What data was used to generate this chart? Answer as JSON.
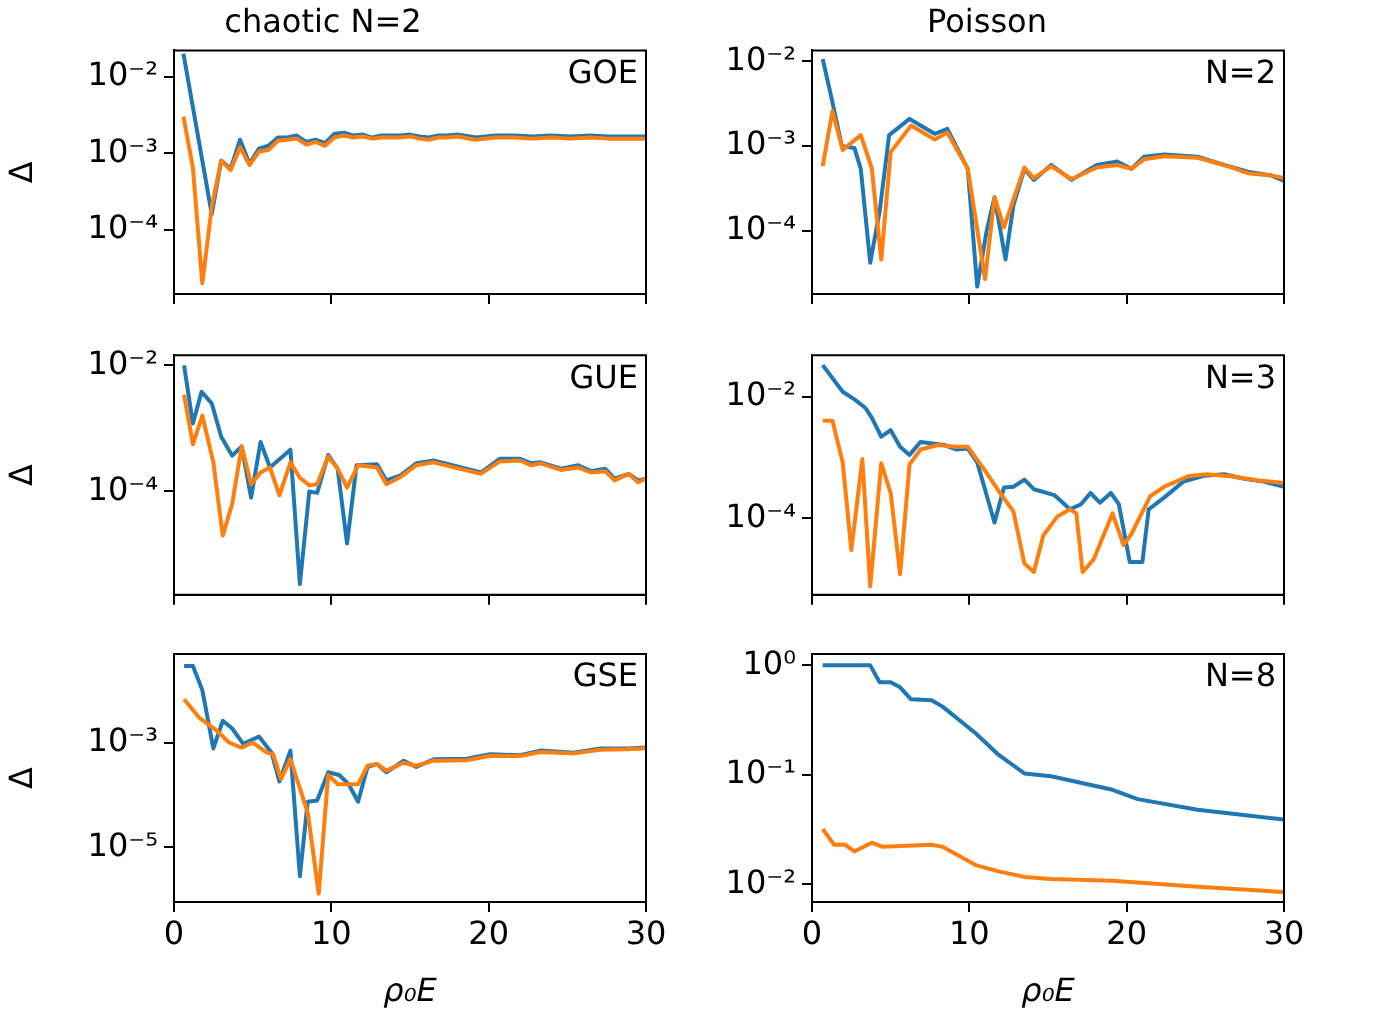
{
  "chart_data": [
    {
      "type": "line",
      "title": "chaotic N=2",
      "ylabel": "Δ",
      "annotations": [
        "GOE"
      ],
      "log": "y",
      "grid": false,
      "legend": false,
      "marker": "none",
      "line_style": "solid",
      "tick_labels": "y",
      "xlim": [
        0,
        30
      ],
      "xticks": [
        0,
        10,
        20,
        30
      ],
      "ylim": [
        1.45e-05,
        0.022
      ],
      "yticks": [
        {
          "value": 0.0001,
          "label": "10⁻⁴"
        },
        {
          "value": 0.001,
          "label": "10⁻³"
        },
        {
          "value": 0.01,
          "label": "10⁻²"
        }
      ],
      "x": [
        0.6,
        1.2,
        1.8,
        2.4,
        3.0,
        3.6,
        4.2,
        4.8,
        5.4,
        6.0,
        6.6,
        7.2,
        7.8,
        8.4,
        9.0,
        9.6,
        10.2,
        10.8,
        11.4,
        12.0,
        12.6,
        13.2,
        13.8,
        14.4,
        15.0,
        15.6,
        16.2,
        16.8,
        17.4,
        18.0,
        19.2,
        20.4,
        21.6,
        22.8,
        24.0,
        25.2,
        26.4,
        27.6,
        28.8,
        30.0
      ],
      "series": [
        {
          "color": "#1f77b4",
          "values": [
            0.02,
            0.004,
            0.0008,
            0.00016,
            0.0008,
            0.00063,
            0.0015,
            0.00073,
            0.00115,
            0.00125,
            0.0016,
            0.0016,
            0.0017,
            0.0014,
            0.0015,
            0.00135,
            0.0018,
            0.00185,
            0.0017,
            0.00175,
            0.0016,
            0.0017,
            0.0017,
            0.0017,
            0.00175,
            0.00165,
            0.0016,
            0.0017,
            0.0017,
            0.00175,
            0.0016,
            0.0017,
            0.0017,
            0.00165,
            0.0017,
            0.00165,
            0.0017,
            0.00165,
            0.00165,
            0.00165
          ]
        },
        {
          "color": "#ff7f0e",
          "values": [
            0.003,
            0.00065,
            2e-05,
            0.0002,
            0.0008,
            0.0006,
            0.0012,
            0.0007,
            0.00105,
            0.0011,
            0.00145,
            0.0015,
            0.00155,
            0.0013,
            0.0014,
            0.00125,
            0.0016,
            0.0017,
            0.0016,
            0.00165,
            0.00155,
            0.0016,
            0.0016,
            0.0016,
            0.00165,
            0.00155,
            0.0015,
            0.0016,
            0.0016,
            0.00165,
            0.0015,
            0.0016,
            0.0016,
            0.00155,
            0.0016,
            0.00155,
            0.0016,
            0.00155,
            0.00155,
            0.00155
          ]
        }
      ]
    },
    {
      "type": "line",
      "title": "Poisson",
      "annotations": [
        "N=2"
      ],
      "log": "y",
      "grid": false,
      "legend": false,
      "marker": "none",
      "line_style": "solid",
      "tick_labels": "y",
      "xlim": [
        0,
        30
      ],
      "xticks": [
        0,
        10,
        20,
        30
      ],
      "ylim": [
        1.8e-05,
        0.0135
      ],
      "yticks": [
        {
          "value": 0.0001,
          "label": "10⁻⁴"
        },
        {
          "value": 0.001,
          "label": "10⁻³"
        },
        {
          "value": 0.01,
          "label": "10⁻²"
        }
      ],
      "series": [
        {
          "color": "#1f77b4",
          "x": [
            0.68,
            1.2,
            1.9,
            2.7,
            3.1,
            3.7,
            4.3,
            4.9,
            6.2,
            6.9,
            7.8,
            8.6,
            9.9,
            10.5,
            11.1,
            11.6,
            12.3,
            12.8,
            13.5,
            14.1,
            15.2,
            16.5,
            18.1,
            19.4,
            20.3,
            21.1,
            22.4,
            24.5,
            26.2,
            27.7,
            29.2,
            30
          ],
          "values": [
            0.0107,
            0.004,
            0.001,
            0.00095,
            0.00054,
            4.2e-05,
            0.00017,
            0.00135,
            0.0021,
            0.00175,
            0.0014,
            0.0016,
            0.00054,
            2.2e-05,
            0.0001,
            0.00025,
            4.6e-05,
            0.0002,
            0.00054,
            0.0004,
            0.0006,
            0.0004,
            0.0006,
            0.00066,
            0.00054,
            0.00075,
            0.0008,
            0.00075,
            0.0006,
            0.0005,
            0.00045,
            0.00039
          ]
        },
        {
          "color": "#ff7f0e",
          "x": [
            0.68,
            1.3,
            1.95,
            3.1,
            3.8,
            4.4,
            5.0,
            6.3,
            7.8,
            8.6,
            9.9,
            11.0,
            11.6,
            12.2,
            13.5,
            14.1,
            15.2,
            16.5,
            18.1,
            19.4,
            20.3,
            21.1,
            22.4,
            24.5,
            26.2,
            27.7,
            29.2,
            30
          ],
          "values": [
            0.00058,
            0.0026,
            0.0009,
            0.00135,
            0.00055,
            4.6e-05,
            0.00085,
            0.00175,
            0.0012,
            0.00145,
            0.00054,
            2.7e-05,
            0.00025,
            0.00011,
            0.00056,
            0.00042,
            0.00058,
            0.00041,
            0.00056,
            0.0006,
            0.00054,
            0.0007,
            0.00076,
            0.00073,
            0.0006,
            0.00048,
            0.00045,
            0.00042
          ]
        }
      ]
    },
    {
      "type": "line",
      "ylabel": "Δ",
      "annotations": [
        "GUE"
      ],
      "log": "y",
      "grid": false,
      "legend": false,
      "marker": "none",
      "line_style": "solid",
      "tick_labels": "y",
      "xlim": [
        0,
        30
      ],
      "xticks": [
        0,
        10,
        20,
        30
      ],
      "ylim": [
        2.3e-06,
        0.0145
      ],
      "yticks": [
        {
          "value": 0.0001,
          "label": "10⁻⁴"
        },
        {
          "value": 0.01,
          "label": "10⁻²"
        }
      ],
      "series": [
        {
          "color": "#1f77b4",
          "x": [
            0.64,
            1.2,
            1.75,
            2.4,
            3.0,
            3.7,
            4.3,
            4.9,
            5.5,
            6.1,
            7.4,
            8.0,
            8.6,
            9.1,
            9.8,
            10.4,
            11.0,
            11.6,
            12.9,
            13.5,
            14.4,
            15.4,
            16.5,
            19.5,
            20.7,
            22.0,
            22.7,
            23.3,
            24.6,
            25.7,
            26.5,
            27.4,
            28.0,
            28.9,
            29.5,
            30
          ],
          "values": [
            0.01,
            0.0012,
            0.0038,
            0.0025,
            0.00074,
            0.00037,
            0.00052,
            8e-05,
            0.00061,
            0.00024,
            0.00046,
            3.4e-06,
            0.0001,
            9.5e-05,
            0.00038,
            0.00023,
            1.5e-05,
            0.00026,
            0.00027,
            0.00015,
            0.00018,
            0.00028,
            0.00031,
            0.0002,
            0.00033,
            0.00033,
            0.00028,
            0.00029,
            0.00023,
            0.00026,
            0.00021,
            0.00023,
            0.00016,
            0.00019,
            0.00015,
            0.00016
          ]
        },
        {
          "color": "#ff7f0e",
          "x": [
            0.64,
            1.2,
            1.8,
            2.5,
            3.1,
            3.7,
            4.3,
            4.9,
            5.5,
            6.1,
            6.7,
            7.4,
            8.0,
            8.6,
            9.1,
            9.8,
            10.4,
            11.0,
            11.7,
            12.9,
            13.5,
            14.4,
            15.4,
            16.5,
            19.5,
            20.7,
            22.0,
            22.7,
            23.3,
            24.6,
            25.7,
            26.5,
            27.4,
            28.0,
            28.9,
            29.5,
            30
          ],
          "values": [
            0.0034,
            0.00056,
            0.0016,
            0.00029,
            2e-05,
            6.4e-05,
            0.00052,
            0.00013,
            0.0002,
            0.00024,
            8.7e-05,
            0.00029,
            0.000165,
            0.000125,
            0.00013,
            0.00036,
            0.00023,
            0.000115,
            0.00026,
            0.00024,
            0.00013,
            0.00017,
            0.00026,
            0.00029,
            0.00019,
            0.0003,
            0.00031,
            0.00026,
            0.00028,
            0.00022,
            0.00024,
            0.0002,
            0.00021,
            0.00015,
            0.00019,
            0.00014,
            0.00016
          ]
        }
      ]
    },
    {
      "type": "line",
      "annotations": [
        "N=3"
      ],
      "log": "y",
      "grid": false,
      "legend": false,
      "marker": "none",
      "line_style": "solid",
      "tick_labels": "y",
      "xlim": [
        0,
        30
      ],
      "xticks": [
        0,
        10,
        20,
        30
      ],
      "ylim": [
        5.5e-06,
        0.048
      ],
      "yticks": [
        {
          "value": 0.0001,
          "label": "10⁻⁴"
        },
        {
          "value": 0.01,
          "label": "10⁻²"
        }
      ],
      "series": [
        {
          "color": "#1f77b4",
          "x": [
            0.68,
            1.95,
            2.7,
            3.4,
            3.8,
            4.4,
            5.0,
            5.6,
            6.2,
            6.9,
            8.4,
            9.2,
            9.9,
            10.5,
            11.6,
            12.2,
            12.8,
            13.5,
            14.1,
            15.4,
            16.4,
            17.1,
            17.7,
            18.3,
            19.0,
            19.5,
            20.2,
            21.0,
            21.4,
            22.4,
            23.6,
            24.9,
            26.2,
            27.4,
            28.7,
            30
          ],
          "values": [
            0.033,
            0.012,
            0.009,
            0.0065,
            0.0045,
            0.0022,
            0.0028,
            0.0015,
            0.0011,
            0.0018,
            0.0016,
            0.00135,
            0.0014,
            0.00083,
            8.5e-05,
            0.00032,
            0.00033,
            0.00043,
            0.0003,
            0.00024,
            0.00014,
            0.00017,
            0.00026,
            0.00018,
            0.00026,
            0.00017,
            1.9e-05,
            1.9e-05,
            0.00014,
            0.00022,
            0.0004,
            0.0005,
            0.00053,
            0.00045,
            0.0004,
            0.00033
          ]
        },
        {
          "color": "#ff7f0e",
          "x": [
            0.68,
            1.3,
            1.95,
            2.5,
            3.2,
            3.7,
            4.4,
            5.0,
            5.6,
            6.2,
            6.9,
            8.0,
            9.1,
            9.9,
            10.9,
            12.0,
            12.8,
            13.5,
            14.1,
            14.7,
            15.6,
            16.4,
            16.8,
            17.2,
            17.9,
            19.1,
            19.8,
            20.3,
            21.5,
            22.4,
            23.9,
            25.1,
            26.6,
            28.3,
            30
          ],
          "values": [
            0.004,
            0.004,
            0.00083,
            3e-05,
            0.00094,
            7.6e-06,
            0.0008,
            0.00026,
            1.2e-05,
            0.00077,
            0.00135,
            0.0016,
            0.0015,
            0.0015,
            0.00066,
            0.00025,
            0.00013,
            1.8e-05,
            1.3e-05,
            5.2e-05,
            0.000107,
            0.00014,
            0.00012,
            1.3e-05,
            2.1e-05,
            0.00012,
            3.6e-05,
            5.5e-05,
            0.00023,
            0.00033,
            0.00049,
            0.00053,
            0.00049,
            0.00042,
            0.00038
          ]
        }
      ]
    },
    {
      "type": "line",
      "xlabel": "ρ₀E",
      "ylabel": "Δ",
      "annotations": [
        "GSE"
      ],
      "log": "y",
      "grid": false,
      "legend": false,
      "marker": "none",
      "line_style": "solid",
      "xlim": [
        0,
        30
      ],
      "xticks": [
        0,
        10,
        20,
        30
      ],
      "ylim": [
        9e-07,
        0.049
      ],
      "yticks": [
        {
          "value": 1e-05,
          "label": "10⁻⁵"
        },
        {
          "value": 0.001,
          "label": "10⁻³"
        }
      ],
      "series": [
        {
          "color": "#1f77b4",
          "x": [
            0.64,
            1.2,
            1.8,
            2.5,
            3.1,
            3.7,
            4.4,
            5.4,
            6.2,
            6.7,
            7.4,
            8.0,
            8.5,
            9.1,
            9.8,
            10.5,
            11.1,
            11.7,
            12.3,
            12.9,
            13.5,
            14.6,
            15.4,
            16.5,
            18.6,
            20.1,
            22.0,
            23.3,
            25.4,
            27.1,
            28.8,
            30
          ],
          "values": [
            0.029,
            0.029,
            0.01,
            0.00077,
            0.0026,
            0.00185,
            0.00094,
            0.0013,
            0.00064,
            0.00018,
            0.0007,
            2.8e-06,
            7.4e-05,
            7.8e-05,
            0.00027,
            0.00024,
            0.00016,
            7.4e-05,
            0.00034,
            0.00039,
            0.00027,
            0.00045,
            0.00034,
            0.00048,
            0.00049,
            0.0006,
            0.00057,
            0.0007,
            0.00064,
            0.00077,
            0.00077,
            0.0008
          ]
        },
        {
          "color": "#ff7f0e",
          "x": [
            0.64,
            1.6,
            2.7,
            3.5,
            4.3,
            5.0,
            5.9,
            6.3,
            6.8,
            7.4,
            8.5,
            9.2,
            9.8,
            10.4,
            11.7,
            12.3,
            12.9,
            13.5,
            14.6,
            15.4,
            16.5,
            18.6,
            20.1,
            22.0,
            23.3,
            25.4,
            27.1,
            28.8,
            30
          ],
          "values": [
            0.0067,
            0.003,
            0.0017,
            0.001,
            0.0008,
            0.001,
            0.00064,
            0.0006,
            0.0002,
            0.00048,
            4.6e-05,
            1.3e-06,
            0.00024,
            0.00016,
            0.00016,
            0.00036,
            0.00039,
            0.00029,
            0.00041,
            0.00036,
            0.00045,
            0.00046,
            0.00056,
            0.00055,
            0.00066,
            0.00062,
            0.00073,
            0.00074,
            0.00078
          ]
        }
      ]
    },
    {
      "type": "line",
      "xlabel": "ρ₀E",
      "annotations": [
        "N=8"
      ],
      "log": "y",
      "grid": false,
      "legend": false,
      "marker": "none",
      "line_style": "solid",
      "xlim": [
        0,
        30
      ],
      "xticks": [
        0,
        10,
        20,
        30
      ],
      "ylim": [
        0.0069,
        1.27
      ],
      "yticks": [
        {
          "value": 0.01,
          "label": "10⁻²"
        },
        {
          "value": 0.1,
          "label": "10⁻¹"
        },
        {
          "value": 1,
          "label": "10⁰"
        }
      ],
      "series": [
        {
          "color": "#1f77b4",
          "x": [
            0.68,
            3.7,
            4.3,
            5.0,
            5.6,
            6.3,
            7.6,
            8.3,
            10.4,
            11.8,
            13.5,
            15.2,
            19.1,
            20.7,
            24.5,
            30
          ],
          "values": [
            1.0,
            1.0,
            0.7,
            0.7,
            0.63,
            0.49,
            0.48,
            0.42,
            0.24,
            0.155,
            0.103,
            0.097,
            0.073,
            0.06,
            0.048,
            0.039
          ]
        },
        {
          "color": "#ff7f0e",
          "x": [
            0.68,
            1.4,
            2.1,
            2.7,
            3.8,
            4.5,
            7.6,
            8.3,
            10.4,
            11.8,
            13.5,
            15.2,
            19.1,
            24.5,
            30
          ],
          "values": [
            0.032,
            0.023,
            0.023,
            0.02,
            0.024,
            0.022,
            0.023,
            0.022,
            0.015,
            0.0132,
            0.0117,
            0.0112,
            0.0108,
            0.0095,
            0.0085
          ]
        }
      ]
    }
  ]
}
